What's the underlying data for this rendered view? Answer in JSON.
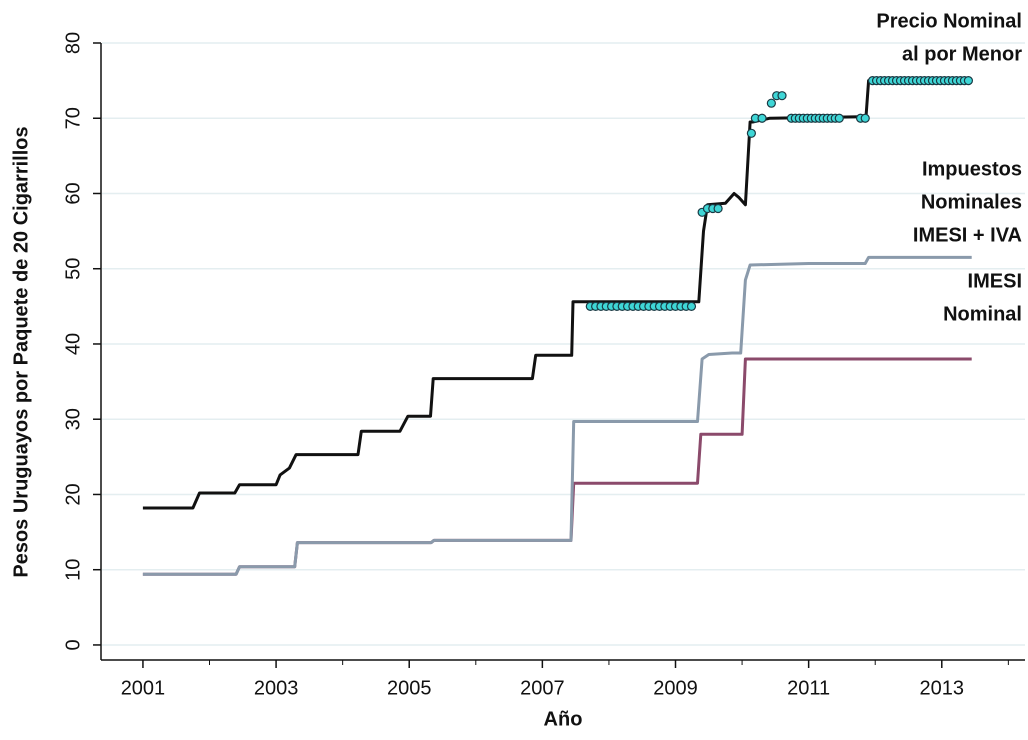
{
  "chart_data": {
    "type": "line",
    "x_label": "Año",
    "y_label": "Pesos Uruguayos por Paquete de 20 Cigarrillos",
    "xlim": [
      2000.37,
      2014.25
    ],
    "ylim": [
      -2,
      80
    ],
    "xticks": [
      2001,
      2003,
      2005,
      2007,
      2009,
      2011,
      2013
    ],
    "xminor_ticks": [
      2002,
      2004,
      2006,
      2008,
      2010,
      2012,
      2014
    ],
    "yticks": [
      0,
      10,
      20,
      30,
      40,
      50,
      60,
      70,
      80
    ],
    "grid": true,
    "series": [
      {
        "label": [
          "Precio Nominal",
          "al por Menor"
        ],
        "color": "#111111",
        "x": [
          2001,
          2001.75,
          2001.85,
          2002.38,
          2002.45,
          2003.0,
          2003.06,
          2003.2,
          2003.3,
          2004.23,
          2004.28,
          2004.86,
          2004.98,
          2005.32,
          2005.36,
          2006.85,
          2006.9,
          2007.44,
          2007.46,
          2009.35,
          2009.42,
          2009.48,
          2009.75,
          2009.88,
          2009.95,
          2010.05,
          2010.12,
          2010.16,
          2010.42,
          2011.78,
          2011.86,
          2011.9,
          2013.45
        ],
        "values": [
          18.2,
          18.2,
          20.2,
          20.2,
          21.3,
          21.3,
          22.6,
          23.5,
          25.3,
          25.3,
          28.4,
          28.4,
          30.4,
          30.4,
          35.4,
          35.4,
          38.5,
          38.5,
          45.6,
          45.6,
          55,
          58.5,
          58.7,
          60,
          59.5,
          58.5,
          69.5,
          69.5,
          70,
          70.2,
          70,
          75,
          75
        ]
      },
      {
        "label": [
          "Impuestos",
          "Nominales",
          "IMESI + IVA"
        ],
        "color": "#8a9aab",
        "x": [
          2001,
          2002.4,
          2002.45,
          2003.28,
          2003.32,
          2005.33,
          2005.37,
          2007.43,
          2007.47,
          2009.33,
          2009.4,
          2009.5,
          2009.85,
          2009.98,
          2010.05,
          2010.12,
          2011.0,
          2011.85,
          2011.9,
          2013.45
        ],
        "values": [
          9.4,
          9.4,
          10.4,
          10.4,
          13.6,
          13.6,
          13.9,
          13.9,
          29.7,
          29.7,
          38,
          38.6,
          38.8,
          38.8,
          48.5,
          50.5,
          50.7,
          50.7,
          51.5,
          51.5
        ]
      },
      {
        "label": [
          "IMESI",
          "Nominal"
        ],
        "color": "#8b4a6b",
        "x": [
          2001,
          2002.4,
          2002.45,
          2003.28,
          2003.32,
          2005.33,
          2005.37,
          2007.43,
          2007.47,
          2009.33,
          2009.38,
          2010.0,
          2010.05,
          2013.45
        ],
        "values": [
          9.4,
          9.4,
          10.4,
          10.4,
          13.6,
          13.6,
          13.9,
          13.9,
          21.5,
          21.5,
          28,
          28,
          38,
          38
        ]
      },
      {
        "type": "scatter",
        "color": "#3fd6d6",
        "x": [
          2007.72,
          2007.8,
          2007.88,
          2007.96,
          2008.04,
          2008.12,
          2008.2,
          2008.28,
          2008.36,
          2008.44,
          2008.52,
          2008.6,
          2008.68,
          2008.76,
          2008.84,
          2008.92,
          2009.0,
          2009.08,
          2009.16,
          2009.24,
          2009.4,
          2009.48,
          2009.56,
          2009.64,
          2010.14,
          2010.2,
          2010.3,
          2010.44,
          2010.52,
          2010.6,
          2010.74,
          2010.8,
          2010.86,
          2010.92,
          2010.98,
          2011.04,
          2011.1,
          2011.16,
          2011.22,
          2011.28,
          2011.34,
          2011.4,
          2011.46,
          2011.78,
          2011.85,
          2011.96,
          2012.02,
          2012.08,
          2012.14,
          2012.2,
          2012.26,
          2012.32,
          2012.38,
          2012.44,
          2012.5,
          2012.56,
          2012.62,
          2012.68,
          2012.74,
          2012.8,
          2012.86,
          2012.92,
          2012.98,
          2013.04,
          2013.1,
          2013.16,
          2013.22,
          2013.28,
          2013.34,
          2013.4
        ],
        "values": [
          45,
          45,
          45,
          45,
          45,
          45,
          45,
          45,
          45,
          45,
          45,
          45,
          45,
          45,
          45,
          45,
          45,
          45,
          45,
          45,
          57.5,
          58,
          58,
          58,
          68,
          70,
          70,
          72,
          73,
          73,
          70,
          70,
          70,
          70,
          70,
          70,
          70,
          70,
          70,
          70,
          70,
          70,
          70,
          70,
          70,
          75,
          75,
          75,
          75,
          75,
          75,
          75,
          75,
          75,
          75,
          75,
          75,
          75,
          75,
          75,
          75,
          75,
          75,
          75,
          75,
          75,
          75,
          75,
          75,
          75
        ]
      }
    ]
  }
}
